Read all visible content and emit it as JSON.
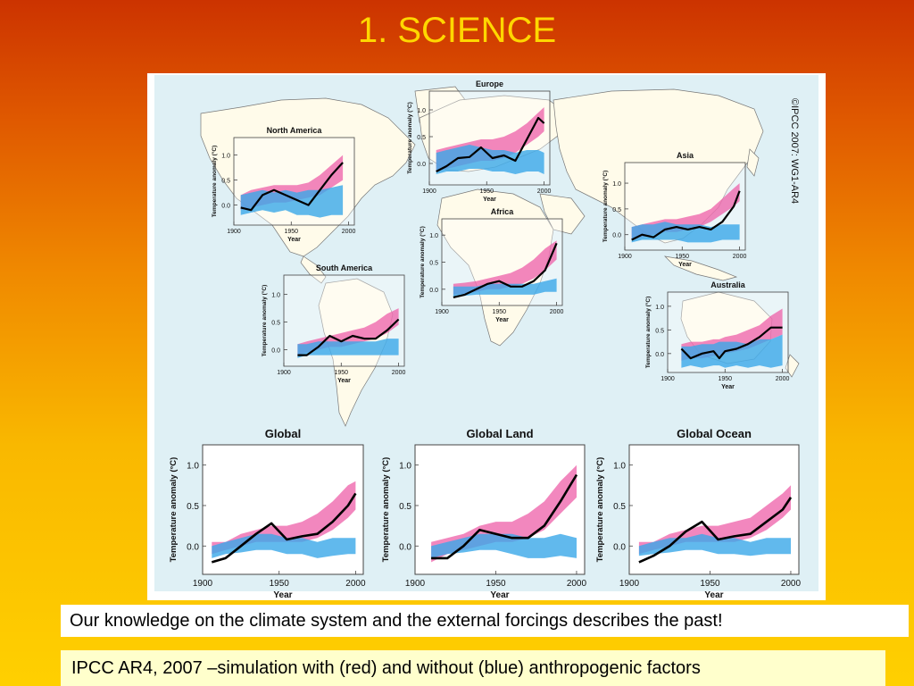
{
  "slide": {
    "title": "1. SCIENCE",
    "caption_1": "Our knowledge on the climate system and the external forcings describes the past!",
    "caption_2": "IPCC AR4, 2007 –simulation with (red) and without (blue) anthropogenic factors",
    "copyright": "©IPCC 2007: WG1-AR4"
  },
  "colors": {
    "with_anthropogenic": "#ee5fa8",
    "without_anthropogenic": "#3aa8e8",
    "observed": "#000000",
    "ocean": "#dff0f5",
    "land": "#fffbea"
  },
  "chart_data": [
    {
      "type": "area",
      "title": "Europe",
      "ylabel": "Temperature anomaly (°C)",
      "xlabel": "Year",
      "xticks": [
        1900,
        1950,
        2000
      ],
      "yticks": [
        0.0,
        0.5,
        1.0
      ],
      "xlim": [
        1900,
        2005
      ],
      "ylim": [
        -0.4,
        1.35
      ],
      "size": "small",
      "x": [
        1906,
        1915,
        1925,
        1935,
        1945,
        1955,
        1965,
        1975,
        1985,
        1995,
        2000
      ],
      "series": [
        {
          "name": "with",
          "color": "pink",
          "low": [
            -0.15,
            -0.1,
            -0.05,
            0.0,
            0.05,
            0.05,
            0.1,
            0.2,
            0.35,
            0.5,
            0.6
          ],
          "high": [
            0.25,
            0.3,
            0.35,
            0.4,
            0.45,
            0.45,
            0.5,
            0.6,
            0.75,
            0.95,
            1.05
          ]
        },
        {
          "name": "without",
          "color": "blue",
          "low": [
            -0.2,
            -0.15,
            -0.15,
            -0.1,
            -0.1,
            -0.15,
            -0.15,
            -0.2,
            -0.15,
            -0.15,
            -0.2
          ],
          "high": [
            0.2,
            0.25,
            0.3,
            0.35,
            0.3,
            0.25,
            0.25,
            0.2,
            0.25,
            0.25,
            0.2
          ]
        },
        {
          "name": "observed",
          "values": [
            -0.15,
            -0.05,
            0.1,
            0.12,
            0.3,
            0.1,
            0.15,
            0.05,
            0.45,
            0.85,
            0.75
          ]
        }
      ]
    },
    {
      "type": "area",
      "title": "North America",
      "ylabel": "Temperature anomaly (°C)",
      "xlabel": "Year",
      "xticks": [
        1900,
        1950,
        2000
      ],
      "yticks": [
        0.0,
        0.5,
        1.0
      ],
      "xlim": [
        1900,
        2005
      ],
      "ylim": [
        -0.4,
        1.35
      ],
      "size": "small",
      "x": [
        1906,
        1915,
        1925,
        1935,
        1945,
        1955,
        1965,
        1975,
        1985,
        1995
      ],
      "series": [
        {
          "name": "with",
          "color": "pink",
          "low": [
            -0.1,
            -0.05,
            0.0,
            0.05,
            0.05,
            0.1,
            0.15,
            0.2,
            0.35,
            0.5
          ],
          "high": [
            0.2,
            0.3,
            0.35,
            0.4,
            0.4,
            0.4,
            0.45,
            0.6,
            0.8,
            1.0
          ]
        },
        {
          "name": "without",
          "color": "blue",
          "low": [
            -0.2,
            -0.15,
            -0.1,
            -0.15,
            -0.1,
            -0.2,
            -0.2,
            -0.25,
            -0.2,
            -0.2
          ],
          "high": [
            0.2,
            0.25,
            0.3,
            0.25,
            0.3,
            0.25,
            0.3,
            0.3,
            0.35,
            0.4
          ]
        },
        {
          "name": "observed",
          "values": [
            -0.05,
            -0.1,
            0.2,
            0.3,
            0.2,
            0.1,
            0.0,
            0.3,
            0.6,
            0.85
          ]
        }
      ]
    },
    {
      "type": "area",
      "title": "Asia",
      "ylabel": "Temperature anomaly (°C)",
      "xlabel": "Year",
      "xticks": [
        1900,
        1950,
        2000
      ],
      "yticks": [
        0.0,
        0.5,
        1.0
      ],
      "xlim": [
        1900,
        2005
      ],
      "ylim": [
        -0.3,
        1.4
      ],
      "size": "small",
      "x": [
        1906,
        1915,
        1925,
        1935,
        1945,
        1955,
        1965,
        1975,
        1985,
        1995,
        2000
      ],
      "series": [
        {
          "name": "with",
          "color": "pink",
          "low": [
            -0.1,
            -0.05,
            0.0,
            0.05,
            0.05,
            0.1,
            0.15,
            0.25,
            0.4,
            0.55,
            0.65
          ],
          "high": [
            0.15,
            0.2,
            0.25,
            0.3,
            0.3,
            0.35,
            0.4,
            0.5,
            0.7,
            0.9,
            1.0
          ]
        },
        {
          "name": "without",
          "color": "blue",
          "low": [
            -0.15,
            -0.1,
            -0.1,
            -0.1,
            -0.1,
            -0.15,
            -0.15,
            -0.15,
            -0.1,
            -0.1,
            -0.1
          ],
          "high": [
            0.15,
            0.2,
            0.2,
            0.25,
            0.2,
            0.2,
            0.2,
            0.15,
            0.2,
            0.2,
            0.2
          ]
        },
        {
          "name": "observed",
          "values": [
            -0.1,
            0.0,
            -0.05,
            0.1,
            0.15,
            0.1,
            0.15,
            0.1,
            0.25,
            0.55,
            0.85
          ]
        }
      ]
    },
    {
      "type": "area",
      "title": "Africa",
      "ylabel": "Temperature anomaly (°C)",
      "xlabel": "Year",
      "xticks": [
        1900,
        1950,
        2000
      ],
      "yticks": [
        0.0,
        0.5,
        1.0
      ],
      "xlim": [
        1900,
        2005
      ],
      "ylim": [
        -0.3,
        1.3
      ],
      "size": "small",
      "x": [
        1910,
        1920,
        1930,
        1940,
        1950,
        1960,
        1970,
        1980,
        1990,
        2000
      ],
      "series": [
        {
          "name": "with",
          "color": "pink",
          "low": [
            -0.1,
            -0.08,
            -0.05,
            0.0,
            0.0,
            0.05,
            0.1,
            0.2,
            0.35,
            0.55
          ],
          "high": [
            0.1,
            0.12,
            0.15,
            0.2,
            0.25,
            0.3,
            0.4,
            0.55,
            0.75,
            0.9
          ]
        },
        {
          "name": "without",
          "color": "blue",
          "low": [
            -0.15,
            -0.12,
            -0.1,
            -0.1,
            -0.1,
            -0.1,
            -0.1,
            -0.1,
            -0.05,
            -0.05
          ],
          "high": [
            0.05,
            0.05,
            0.05,
            0.1,
            0.1,
            0.1,
            0.1,
            0.1,
            0.15,
            0.2
          ]
        },
        {
          "name": "observed",
          "values": [
            -0.15,
            -0.1,
            0.0,
            0.1,
            0.15,
            0.05,
            0.05,
            0.15,
            0.35,
            0.85
          ]
        }
      ]
    },
    {
      "type": "area",
      "title": "South America",
      "ylabel": "Temperature anomaly (°C)",
      "xlabel": "Year",
      "xticks": [
        1900,
        1950,
        2000
      ],
      "yticks": [
        0.0,
        0.5,
        1.0
      ],
      "xlim": [
        1900,
        2005
      ],
      "ylim": [
        -0.3,
        1.35
      ],
      "size": "small",
      "x": [
        1912,
        1920,
        1930,
        1940,
        1950,
        1960,
        1970,
        1980,
        1990,
        2000
      ],
      "series": [
        {
          "name": "with",
          "color": "pink",
          "low": [
            -0.1,
            -0.05,
            0.0,
            0.05,
            0.05,
            0.1,
            0.15,
            0.2,
            0.3,
            0.45
          ],
          "high": [
            0.1,
            0.15,
            0.2,
            0.25,
            0.3,
            0.35,
            0.4,
            0.5,
            0.65,
            0.75
          ]
        },
        {
          "name": "without",
          "color": "blue",
          "low": [
            -0.15,
            -0.1,
            -0.1,
            -0.1,
            -0.1,
            -0.1,
            -0.1,
            -0.1,
            -0.1,
            -0.1
          ],
          "high": [
            0.1,
            0.1,
            0.15,
            0.15,
            0.15,
            0.15,
            0.15,
            0.15,
            0.2,
            0.2
          ]
        },
        {
          "name": "observed",
          "values": [
            -0.1,
            -0.1,
            0.05,
            0.25,
            0.15,
            0.25,
            0.2,
            0.2,
            0.35,
            0.55
          ]
        }
      ]
    },
    {
      "type": "area",
      "title": "Australia",
      "ylabel": "Temperature anomaly (°C)",
      "xlabel": "Year",
      "xticks": [
        1900,
        1950,
        2000
      ],
      "yticks": [
        0.0,
        0.5,
        1.0
      ],
      "xlim": [
        1900,
        2005
      ],
      "ylim": [
        -0.4,
        1.3
      ],
      "size": "small",
      "x": [
        1912,
        1920,
        1930,
        1940,
        1945,
        1950,
        1960,
        1970,
        1980,
        1990,
        2000
      ],
      "series": [
        {
          "name": "with",
          "color": "pink",
          "low": [
            -0.15,
            -0.1,
            -0.1,
            -0.05,
            -0.05,
            0.0,
            0.05,
            0.1,
            0.2,
            0.3,
            0.4
          ],
          "high": [
            0.2,
            0.25,
            0.25,
            0.3,
            0.3,
            0.35,
            0.4,
            0.5,
            0.6,
            0.8,
            0.95
          ]
        },
        {
          "name": "without",
          "color": "blue",
          "low": [
            -0.3,
            -0.25,
            -0.3,
            -0.25,
            -0.25,
            -0.3,
            -0.25,
            -0.3,
            -0.25,
            -0.3,
            -0.25
          ],
          "high": [
            0.15,
            0.15,
            0.2,
            0.2,
            0.25,
            0.25,
            0.25,
            0.2,
            0.3,
            0.3,
            0.4
          ]
        },
        {
          "name": "observed",
          "values": [
            0.1,
            -0.1,
            0.0,
            0.05,
            -0.1,
            0.05,
            0.1,
            0.2,
            0.35,
            0.55,
            0.55
          ]
        }
      ]
    },
    {
      "type": "area",
      "title": "Global",
      "ylabel": "Temperature anomaly (°C)",
      "xlabel": "Year",
      "xticks": [
        1900,
        1950,
        2000
      ],
      "yticks": [
        0.0,
        0.5,
        1.0
      ],
      "xlim": [
        1900,
        2005
      ],
      "ylim": [
        -0.35,
        1.25
      ],
      "size": "large",
      "x": [
        1906,
        1915,
        1925,
        1935,
        1945,
        1955,
        1965,
        1975,
        1985,
        1995,
        2000
      ],
      "series": [
        {
          "name": "with",
          "color": "pink",
          "low": [
            -0.1,
            -0.05,
            0.0,
            0.05,
            0.05,
            0.05,
            0.05,
            0.1,
            0.2,
            0.35,
            0.45
          ],
          "high": [
            0.05,
            0.05,
            0.15,
            0.2,
            0.25,
            0.25,
            0.3,
            0.4,
            0.55,
            0.75,
            0.8
          ]
        },
        {
          "name": "without",
          "color": "blue",
          "low": [
            -0.15,
            -0.1,
            -0.08,
            -0.05,
            -0.05,
            -0.1,
            -0.1,
            -0.15,
            -0.12,
            -0.1,
            -0.1
          ],
          "high": [
            0.0,
            0.05,
            0.1,
            0.15,
            0.15,
            0.1,
            0.1,
            0.05,
            0.1,
            0.1,
            0.1
          ]
        },
        {
          "name": "observed",
          "values": [
            -0.2,
            -0.15,
            0.0,
            0.15,
            0.28,
            0.08,
            0.12,
            0.15,
            0.3,
            0.5,
            0.65
          ]
        }
      ]
    },
    {
      "type": "area",
      "title": "Global Land",
      "ylabel": "Temperature anomaly (°C)",
      "xlabel": "Year",
      "xticks": [
        1900,
        1950,
        2000
      ],
      "yticks": [
        0.0,
        0.5,
        1.0
      ],
      "xlim": [
        1900,
        2005
      ],
      "ylim": [
        -0.35,
        1.25
      ],
      "size": "large",
      "x": [
        1910,
        1920,
        1930,
        1940,
        1950,
        1960,
        1970,
        1980,
        1990,
        2000
      ],
      "series": [
        {
          "name": "with",
          "color": "pink",
          "low": [
            -0.2,
            -0.1,
            -0.05,
            0.0,
            0.05,
            0.05,
            0.1,
            0.2,
            0.4,
            0.6
          ],
          "high": [
            0.05,
            0.1,
            0.15,
            0.25,
            0.3,
            0.3,
            0.4,
            0.55,
            0.8,
            1.0
          ]
        },
        {
          "name": "without",
          "color": "blue",
          "low": [
            -0.15,
            -0.1,
            -0.08,
            -0.05,
            -0.05,
            -0.1,
            -0.15,
            -0.15,
            -0.12,
            -0.15
          ],
          "high": [
            0.0,
            0.05,
            0.1,
            0.15,
            0.15,
            0.15,
            0.1,
            0.1,
            0.15,
            0.1
          ]
        },
        {
          "name": "observed",
          "values": [
            -0.15,
            -0.15,
            0.0,
            0.2,
            0.15,
            0.1,
            0.1,
            0.25,
            0.55,
            0.88
          ]
        }
      ]
    },
    {
      "type": "area",
      "title": "Global Ocean",
      "ylabel": "Temperature anomaly (°C)",
      "xlabel": "Year",
      "xticks": [
        1900,
        1950,
        2000
      ],
      "yticks": [
        0.0,
        0.5,
        1.0
      ],
      "xlim": [
        1900,
        2005
      ],
      "ylim": [
        -0.35,
        1.25
      ],
      "size": "large",
      "x": [
        1906,
        1915,
        1925,
        1935,
        1945,
        1955,
        1965,
        1975,
        1985,
        1995,
        2000
      ],
      "series": [
        {
          "name": "with",
          "color": "pink",
          "low": [
            -0.1,
            -0.05,
            0.0,
            0.05,
            0.05,
            0.05,
            0.05,
            0.1,
            0.2,
            0.35,
            0.45
          ],
          "high": [
            0.05,
            0.05,
            0.15,
            0.2,
            0.25,
            0.25,
            0.3,
            0.35,
            0.5,
            0.65,
            0.75
          ]
        },
        {
          "name": "without",
          "color": "blue",
          "low": [
            -0.12,
            -0.1,
            -0.08,
            -0.05,
            -0.05,
            -0.1,
            -0.1,
            -0.12,
            -0.1,
            -0.1,
            -0.1
          ],
          "high": [
            0.0,
            0.05,
            0.1,
            0.1,
            0.15,
            0.1,
            0.1,
            0.05,
            0.1,
            0.1,
            0.1
          ]
        },
        {
          "name": "observed",
          "values": [
            -0.2,
            -0.12,
            0.0,
            0.18,
            0.3,
            0.08,
            0.12,
            0.15,
            0.3,
            0.45,
            0.6
          ]
        }
      ]
    }
  ]
}
